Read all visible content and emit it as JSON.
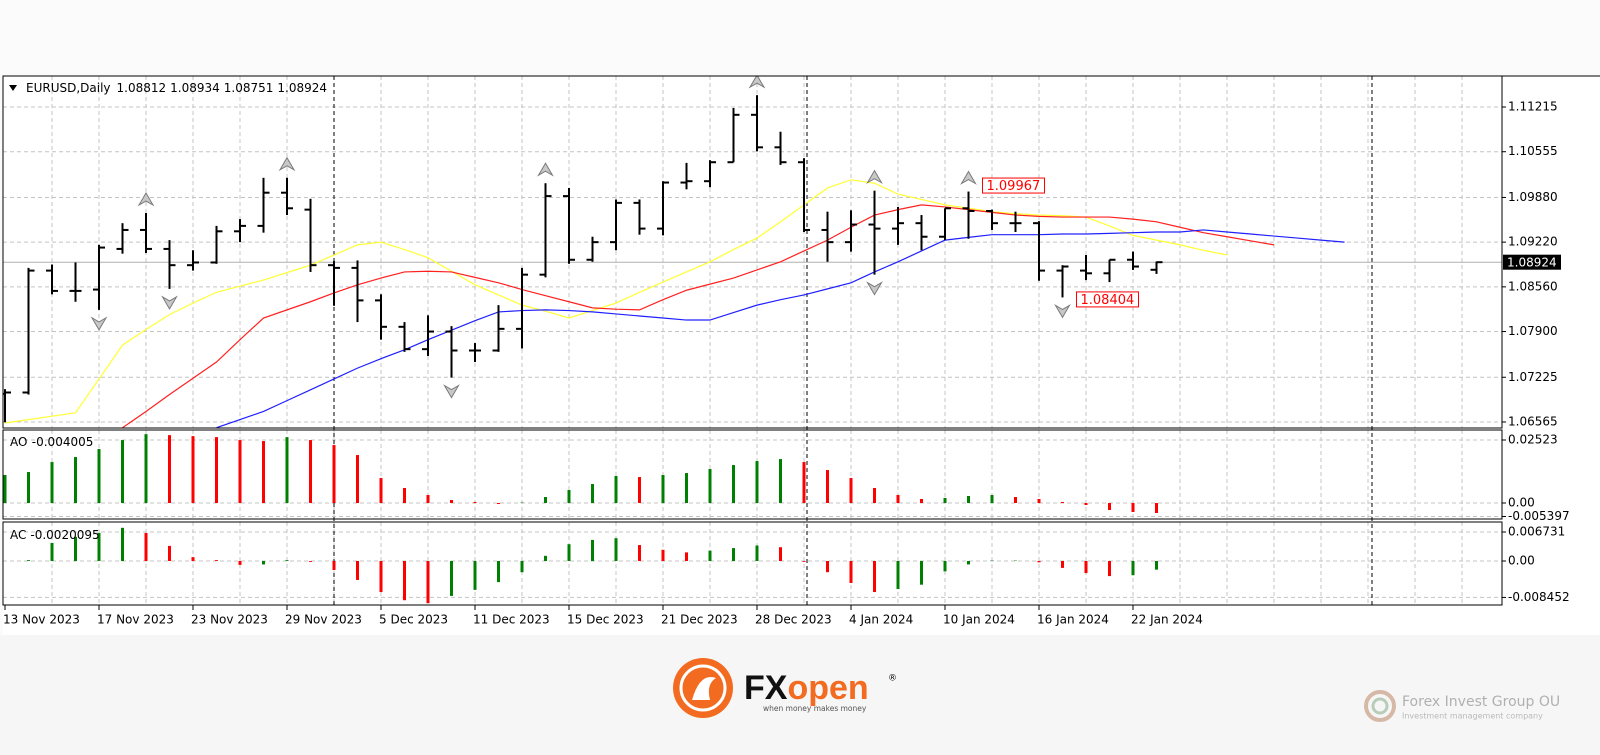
{
  "chart_data": {
    "type": "ohlc",
    "title": "EURUSD,Daily",
    "categories": [
      "13 Nov 2023",
      null,
      null,
      null,
      "17 Nov 2023",
      null,
      null,
      null,
      "23 Nov 2023",
      null,
      null,
      null,
      "29 Nov 2023",
      null,
      null,
      null,
      "5 Dec 2023",
      null,
      null,
      null,
      "11 Dec 2023",
      null,
      null,
      null,
      "15 Dec 2023",
      null,
      null,
      null,
      "21 Dec 2023",
      null,
      null,
      null,
      "28 Dec 2023",
      null,
      null,
      null,
      "4 Jan 2024",
      null,
      null,
      null,
      "10 Jan 2024",
      null,
      null,
      null,
      "16 Jan 2024",
      null,
      null,
      null,
      "22 Jan 2024",
      null,
      null,
      null,
      null,
      null,
      null,
      null,
      null,
      null,
      null,
      null,
      null,
      null,
      null,
      null
    ],
    "open": [
      1.0698,
      1.07,
      1.088,
      1.085,
      1.0852,
      1.0912,
      1.094,
      1.0912,
      1.0888,
      1.0892,
      1.0938,
      1.0946,
      1.0995,
      1.097,
      1.0888,
      1.0884,
      1.0836,
      1.0797,
      1.0764,
      1.079,
      1.0762,
      1.0762,
      1.0794,
      1.0874,
      1.099,
      1.0896,
      1.0922,
      1.098,
      1.0942,
      1.101,
      1.1012,
      1.104,
      1.111,
      1.1062,
      1.104,
      1.094,
      1.0922,
      1.0948,
      1.0942,
      1.095,
      1.093,
      1.0972,
      1.0968,
      1.095,
      1.095,
      1.088,
      1.088,
      1.0876,
      1.0896,
      1.08812,
      null,
      null,
      null,
      null,
      null,
      null,
      null,
      null,
      null,
      null,
      null,
      null,
      null,
      null
    ],
    "high": [
      1.0705,
      1.0884,
      1.0889,
      1.0892,
      1.0918,
      1.095,
      1.0965,
      1.0925,
      1.091,
      1.0946,
      1.0956,
      1.1017,
      1.1017,
      1.0986,
      1.0894,
      1.0895,
      1.0845,
      1.0804,
      1.0814,
      1.0798,
      1.0773,
      1.0829,
      1.0884,
      1.1009,
      1.1002,
      1.093,
      1.0985,
      1.0985,
      1.1012,
      1.1039,
      1.1043,
      1.112,
      1.1139,
      1.1085,
      1.1046,
      1.0967,
      1.0969,
      1.0998,
      1.0974,
      1.0962,
      1.0972,
      1.09967,
      1.097,
      1.0967,
      1.0953,
      1.0888,
      1.0903,
      1.0896,
      1.0908,
      1.08934,
      null,
      null,
      null,
      null,
      null,
      null,
      null,
      null,
      null,
      null,
      null,
      null,
      null,
      null
    ],
    "low": [
      1.0656,
      1.0697,
      1.0845,
      1.0834,
      1.0822,
      1.0905,
      1.0906,
      1.0853,
      1.088,
      1.089,
      1.0922,
      1.0936,
      1.0962,
      1.0878,
      1.0828,
      1.0804,
      1.0778,
      1.076,
      1.0754,
      1.0722,
      1.0745,
      1.076,
      1.0765,
      1.087,
      1.089,
      1.0893,
      1.091,
      1.0933,
      1.0932,
      1.1,
      1.1003,
      1.104,
      1.1056,
      1.1036,
      1.0937,
      1.0893,
      1.0908,
      1.0874,
      1.0918,
      1.091,
      1.0925,
      1.0927,
      1.094,
      1.0937,
      1.0865,
      1.08404,
      1.0866,
      1.0863,
      1.0881,
      1.08751,
      null,
      null,
      null,
      null,
      null,
      null,
      null,
      null,
      null,
      null,
      null,
      null,
      null,
      null
    ],
    "close": [
      1.07,
      1.088,
      1.085,
      1.085,
      1.0914,
      1.094,
      1.0912,
      1.0888,
      1.0892,
      1.0938,
      1.0946,
      1.0995,
      1.0972,
      1.0888,
      1.0884,
      1.0836,
      1.0797,
      1.0764,
      1.079,
      1.0762,
      1.0762,
      1.0794,
      1.0874,
      1.099,
      1.0896,
      1.0922,
      1.098,
      1.0942,
      1.101,
      1.1012,
      1.104,
      1.111,
      1.1062,
      1.104,
      1.094,
      1.0922,
      1.0948,
      1.0942,
      1.095,
      1.093,
      1.0972,
      1.0968,
      1.095,
      1.095,
      1.088,
      1.0886,
      1.0876,
      1.0896,
      1.0886,
      1.08924,
      null,
      null,
      null,
      null,
      null,
      null,
      null,
      null,
      null,
      null,
      null,
      null,
      null,
      null
    ],
    "bar_color": "#000000",
    "series": [
      {
        "color": "#ffff33",
        "values": [
          1.0655,
          1.066,
          1.0665,
          1.067,
          1.072,
          1.077,
          1.0793,
          1.0815,
          1.0832,
          1.0848,
          1.0857,
          1.0866,
          1.0877,
          1.0888,
          1.0903,
          1.0918,
          1.0922,
          1.0911,
          1.0899,
          1.0879,
          1.0859,
          1.0844,
          1.0829,
          1.082,
          1.081,
          1.0821,
          1.0832,
          1.0848,
          1.0863,
          1.0878,
          1.0893,
          1.0911,
          1.0928,
          1.0952,
          1.0977,
          1.1002,
          1.1014,
          1.1009,
          1.0993,
          1.0985,
          1.0977,
          1.0972,
          1.0967,
          1.0964,
          1.0962,
          1.0961,
          1.0959,
          1.0946,
          1.0932,
          1.0925,
          1.0918,
          1.091,
          1.0903,
          null,
          null,
          null,
          null,
          null,
          null,
          null,
          null,
          null,
          null,
          null
        ]
      },
      {
        "color": "#ff2020",
        "values": [
          null,
          null,
          null,
          null,
          null,
          1.0648,
          1.0672,
          1.0697,
          1.0721,
          1.0745,
          1.0778,
          1.081,
          1.0822,
          1.0834,
          1.0847,
          1.0859,
          1.0869,
          1.0878,
          1.0879,
          1.0878,
          1.087,
          1.0862,
          1.0852,
          1.0843,
          1.0834,
          1.0825,
          1.0823,
          1.0822,
          1.0837,
          1.0851,
          1.086,
          1.0869,
          1.0881,
          1.0893,
          1.0909,
          1.0925,
          1.0944,
          1.0962,
          1.097,
          1.0977,
          1.0974,
          1.097,
          1.0966,
          1.0962,
          1.096,
          1.0959,
          1.0959,
          1.0959,
          1.0956,
          1.0952,
          1.0944,
          1.0936,
          1.093,
          1.0924,
          1.0918,
          null,
          null,
          null,
          null,
          null,
          null,
          null,
          null,
          null
        ]
      },
      {
        "color": "#2020ff",
        "values": [
          null,
          null,
          null,
          null,
          null,
          null,
          null,
          null,
          null,
          1.0648,
          1.066,
          1.0672,
          1.0688,
          1.0704,
          1.072,
          1.0736,
          1.075,
          1.0763,
          1.0778,
          1.0792,
          1.0806,
          1.0819,
          1.0821,
          1.0822,
          1.0821,
          1.0819,
          1.0816,
          1.0813,
          1.081,
          1.0807,
          1.0807,
          1.0818,
          1.0829,
          1.0837,
          1.0844,
          1.0853,
          1.0862,
          1.0878,
          1.0893,
          1.0909,
          1.0925,
          1.0929,
          1.0933,
          1.0933,
          1.0933,
          1.0934,
          1.0934,
          1.0935,
          1.0936,
          1.0937,
          1.0937,
          1.094,
          1.0937,
          1.0934,
          1.0931,
          1.0928,
          1.0925,
          1.0922,
          null,
          null,
          null,
          null,
          null,
          null
        ]
      }
    ],
    "ylim": [
      1.06476,
      1.11673
    ],
    "yticks": [
      1.11215,
      1.10555,
      {
        "value": 1.0988,
        "label": "1.09880"
      },
      {
        "value": 1.0922,
        "label": "1.09220"
      },
      {
        "value": 1.0856,
        "label": "1.08560"
      },
      {
        "value": 1.079,
        "label": "1.07900"
      },
      1.07225,
      1.06565
    ],
    "grid": true,
    "indicators": [
      {
        "type": "histogram",
        "name": "AO",
        "up_color": "#008000",
        "down_color": "#ff0000",
        "values": [
          0.0112,
          0.0124,
          0.0164,
          0.0184,
          0.0216,
          0.0252,
          0.0276,
          0.0272,
          0.0268,
          0.0264,
          0.0252,
          0.0248,
          0.0264,
          0.0252,
          0.0232,
          0.0192,
          0.01,
          0.006,
          0.0032,
          0.0012,
          0.0004,
          -0.0004,
          0.0002,
          0.0024,
          0.0052,
          0.0076,
          0.0108,
          0.0104,
          0.0112,
          0.012,
          0.0136,
          0.0152,
          0.0168,
          0.0176,
          0.0164,
          0.0132,
          0.01,
          0.006,
          0.0032,
          0.0016,
          0.002,
          0.0028,
          0.0032,
          0.0024,
          0.0016,
          0.0004,
          -0.0008,
          -0.0028,
          -0.0036,
          -0.004005,
          null,
          null,
          null,
          null,
          null,
          null,
          null,
          null,
          null,
          null,
          null,
          null,
          null,
          null
        ],
        "ylim": [
          -0.00641,
          0.02923
        ],
        "yticks": [
          0.02523,
          {
            "value": 0,
            "label": "0.00"
          },
          -0.005397
        ]
      },
      {
        "type": "histogram",
        "name": "AC",
        "up_color": "#008000",
        "down_color": "#ff0000",
        "values": [
          0.0,
          0.0002,
          0.0042,
          0.0056,
          0.0065,
          0.0077,
          0.0065,
          0.0035,
          0.0009,
          0.0002,
          -0.0009,
          -0.0008,
          0.0002,
          -0.0002,
          -0.0021,
          -0.0044,
          -0.0072,
          -0.0091,
          -0.0098,
          -0.0081,
          -0.0067,
          -0.0049,
          -0.0026,
          0.0012,
          0.0039,
          0.0049,
          0.0053,
          0.0037,
          0.0026,
          0.002,
          0.0024,
          0.003,
          0.0036,
          0.0032,
          -0.0002,
          -0.0026,
          -0.0051,
          -0.0072,
          -0.0065,
          -0.0055,
          -0.0024,
          -0.0008,
          0.0001,
          0.0001,
          -0.0003,
          -0.0016,
          -0.0028,
          -0.0035,
          -0.0033,
          -0.0020095,
          null,
          null,
          null,
          null,
          null,
          null,
          null,
          null,
          null,
          null,
          null,
          null,
          null,
          null
        ],
        "ylim": [
          -0.01021,
          0.00905
        ],
        "yticks": [
          0.006731,
          {
            "value": 0,
            "label": "0.00"
          },
          -0.008452
        ]
      }
    ]
  },
  "branding": {
    "logo": [
      "FX",
      "open"
    ],
    "registered": "®",
    "tagline": "when money makes money",
    "watermark": "Forex Invest Group OU",
    "watermark_sub": "Investment management company"
  }
}
